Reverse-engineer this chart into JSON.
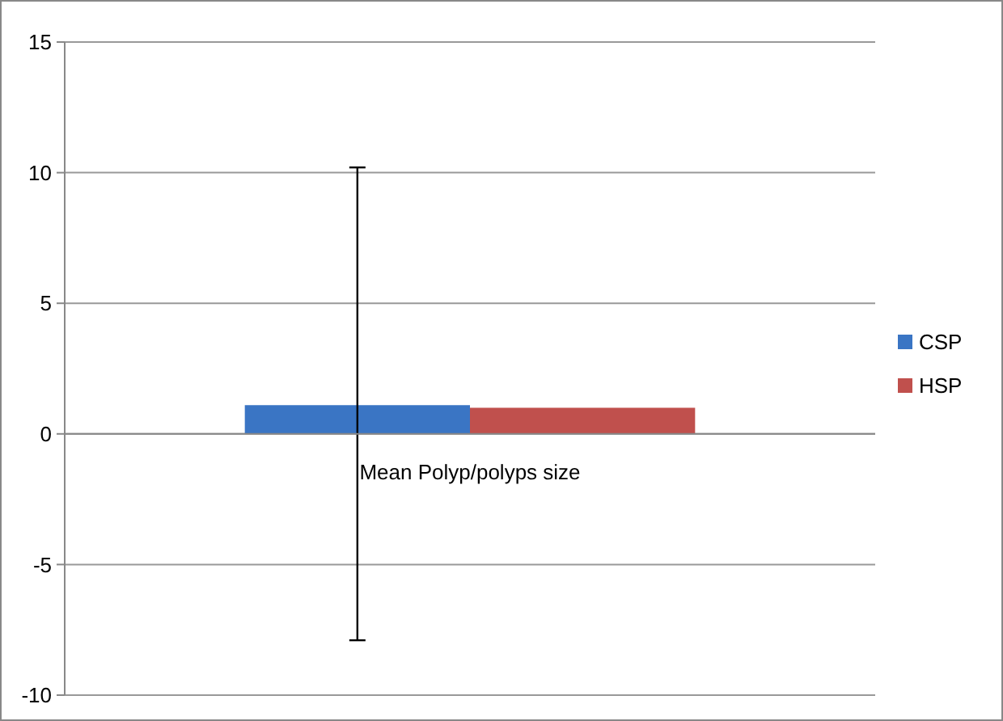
{
  "chart_data": {
    "type": "bar",
    "categories": [
      "Mean Polyp/polyps  size"
    ],
    "series": [
      {
        "name": "CSP",
        "color": "#3a75c4",
        "values": [
          1.1
        ],
        "errors": [
          [
            -7.9,
            10.2
          ]
        ]
      },
      {
        "name": "HSP",
        "color": "#c0504d",
        "values": [
          1.0
        ]
      }
    ],
    "ylim": [
      -10,
      15
    ],
    "yticks": [
      -10,
      -5,
      0,
      5,
      10,
      15
    ],
    "grid": "y",
    "legend": "right"
  }
}
